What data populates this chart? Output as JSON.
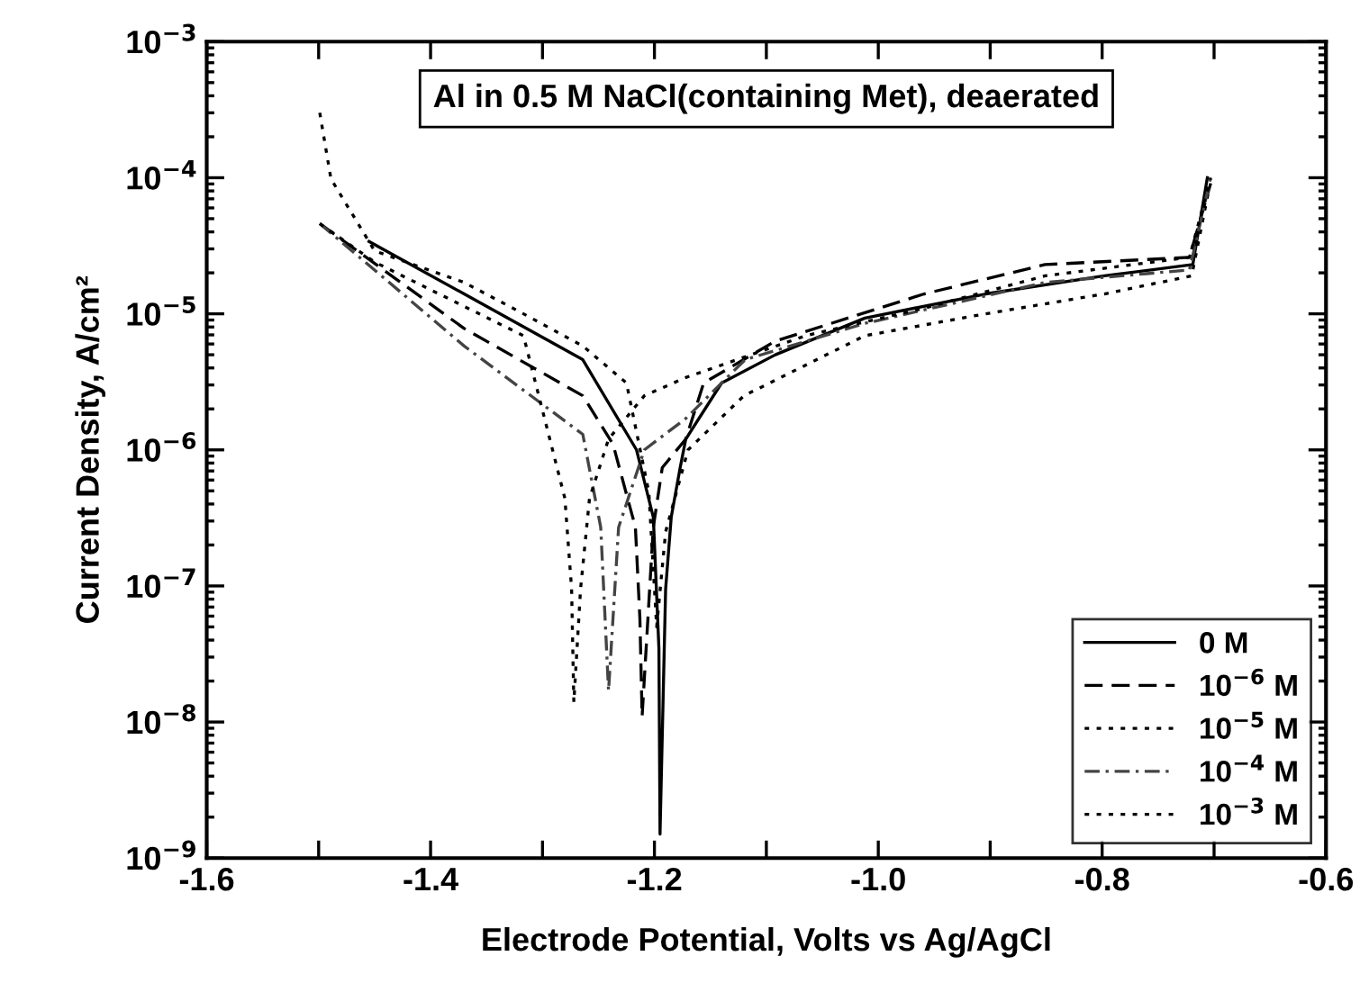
{
  "chart_data": {
    "type": "line",
    "title": "Al in 0.5 M NaCl(containing Met), deaerated",
    "xlabel": "Electrode Potential, Volts vs Ag/AgCl",
    "ylabel": "Current Density, A/cm²",
    "log": "y",
    "legend": "bottom right",
    "grid": false,
    "xlim": [
      -1.6,
      -0.6
    ],
    "ylim": [
      1e-09,
      0.001
    ],
    "xticks": [
      -1.6,
      {
        "value": -1.5,
        "label": null
      },
      -1.4,
      {
        "value": -1.3,
        "label": null
      },
      -1.2,
      {
        "value": -1.1,
        "label": null
      },
      {
        "value": -1.0,
        "label": "-1.0"
      },
      {
        "value": -0.9,
        "label": null
      },
      -0.8,
      {
        "value": -0.7,
        "label": null
      },
      -0.6
    ],
    "yticks": [
      {
        "value": 1e-09,
        "label": "10$^{−9}$"
      },
      {
        "value": 1e-08,
        "label": "10$^{−8}$"
      },
      {
        "value": 1e-07,
        "label": "10$^{−7}$"
      },
      {
        "value": 1e-06,
        "label": "10$^{−6}$"
      },
      {
        "value": 1e-05,
        "label": "10$^{−5}$"
      },
      {
        "value": 0.0001,
        "label": "10$^{−4}$"
      },
      {
        "value": 0.001,
        "label": "10$^{−3}$"
      }
    ],
    "series": [
      {
        "name": "0 M",
        "color": "#000000",
        "line_style": "solid",
        "x": [
          -1.455,
          -1.37,
          -1.264,
          -1.216,
          -1.201,
          -1.196,
          -1.195,
          -1.19,
          -1.185,
          -1.177,
          -1.172,
          -1.14,
          -1.092,
          -1.012,
          -0.904,
          -0.798,
          -0.719,
          -0.706
        ],
        "values": [
          3.4e-05,
          1.4e-05,
          4.6e-06,
          1e-06,
          3.2e-07,
          3.5e-08,
          1.5e-09,
          9.5e-08,
          3.2e-07,
          7.4e-07,
          1.2e-06,
          3.1e-06,
          5e-06,
          9.3e-06,
          1.4e-05,
          1.9e-05,
          2.3e-05,
          0.0001
        ]
      },
      {
        "name": "10$^{−6}$ M",
        "color": "#000000",
        "line_style": "dashed",
        "x": [
          -1.499,
          -1.37,
          -1.264,
          -1.237,
          -1.217,
          -1.213,
          -1.211,
          -1.201,
          -1.193,
          -1.172,
          -1.156,
          -1.092,
          -0.959,
          -0.851,
          -0.722,
          -0.703
        ],
        "values": [
          4.6e-05,
          7.8e-06,
          2.5e-06,
          1.1e-06,
          2.7e-07,
          5.8e-08,
          1.1e-08,
          2.7e-07,
          7.4e-07,
          1.2e-06,
          3.1e-06,
          6.3e-06,
          1.4e-05,
          2.3e-05,
          2.6e-05,
          9.1e-05
        ]
      },
      {
        "name": "10$^{−5}$ M",
        "color": "#000000",
        "line_style": "dotted",
        "x": [
          -1.499,
          -1.489,
          -1.45,
          -1.37,
          -1.317,
          -1.264,
          -1.225,
          -1.205,
          -1.198,
          -1.19,
          -1.17,
          -1.12,
          -1.012,
          -0.904,
          -0.798,
          -0.72,
          -0.705
        ],
        "values": [
          0.0003,
          9.8e-05,
          2.9e-05,
          1.7e-05,
          1e-05,
          5.8e-06,
          3.1e-06,
          4.9e-07,
          5e-08,
          2.5e-07,
          1e-06,
          2.5e-06,
          6.9e-06,
          1e-05,
          1.4e-05,
          1.9e-05,
          7.9e-05
        ]
      },
      {
        "name": "10$^{−4}$ M",
        "color": "#444444",
        "line_style": "dashdot",
        "x": [
          -1.499,
          -1.37,
          -1.264,
          -1.248,
          -1.241,
          -1.232,
          -1.209,
          -1.172,
          -1.119,
          -1.012,
          -0.851,
          -0.722,
          -0.703
        ],
        "values": [
          4.6e-05,
          5.8e-06,
          1.3e-06,
          2.7e-07,
          1.7e-08,
          2.7e-07,
          1e-06,
          1.7e-06,
          4.6e-06,
          8.5e-06,
          1.7e-05,
          2.1e-05,
          0.0001
        ]
      },
      {
        "name": "10$^{−3}$ M",
        "color": "#000000",
        "line_style": "dotted",
        "x": [
          -1.499,
          -1.45,
          -1.317,
          -1.28,
          -1.274,
          -1.272,
          -1.266,
          -1.258,
          -1.241,
          -1.209,
          -1.172,
          -1.065,
          -0.959,
          -0.851,
          -0.722,
          -0.703
        ],
        "values": [
          4.6e-05,
          2.4e-05,
          6.9e-06,
          4.4e-07,
          9.5e-08,
          1.4e-08,
          9.5e-08,
          4.4e-07,
          1.2e-06,
          2.5e-06,
          3.4e-06,
          6.9e-06,
          1.1e-05,
          1.9e-05,
          2.6e-05,
          0.0001
        ]
      }
    ]
  }
}
